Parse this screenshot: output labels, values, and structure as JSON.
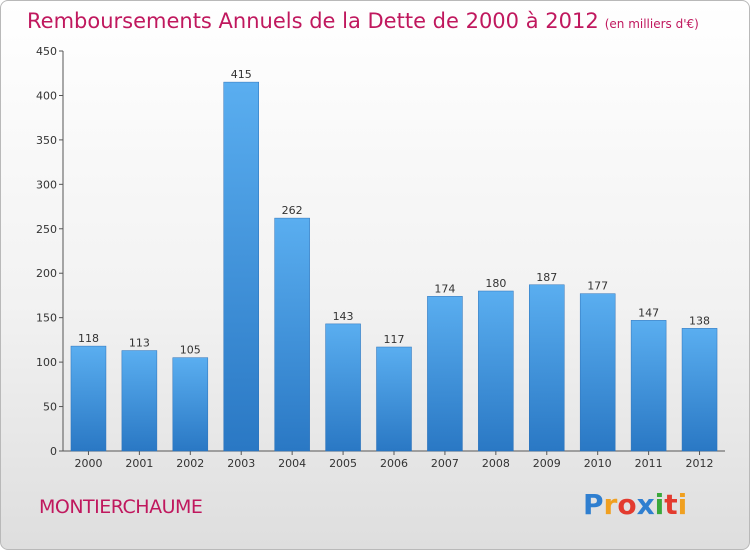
{
  "chart_data": {
    "type": "bar",
    "title": "Remboursements Annuels de la Dette de 2000 à 2012",
    "unit_note": "(en milliers d'€)",
    "categories": [
      "2000",
      "2001",
      "2002",
      "2003",
      "2004",
      "2005",
      "2006",
      "2007",
      "2008",
      "2009",
      "2010",
      "2011",
      "2012"
    ],
    "values": [
      118,
      113,
      105,
      415,
      262,
      143,
      117,
      174,
      180,
      187,
      177,
      147,
      138
    ],
    "ylim": [
      0,
      450
    ],
    "yticks": [
      0,
      50,
      100,
      150,
      200,
      250,
      300,
      350,
      400,
      450
    ],
    "grid": false,
    "bar_color": "#3b8fd6"
  },
  "footer": {
    "city": "MONTIERCHAUME",
    "logo_letters": [
      "P",
      "r",
      "o",
      "x",
      "i",
      "t",
      "i"
    ],
    "logo_colors": [
      "#2f7fd0",
      "#f0a020",
      "#e33b2f",
      "#2f7fd0",
      "#3aa83a",
      "#e33b2f",
      "#f0a020"
    ]
  },
  "colors": {
    "accent": "#c0185e"
  }
}
